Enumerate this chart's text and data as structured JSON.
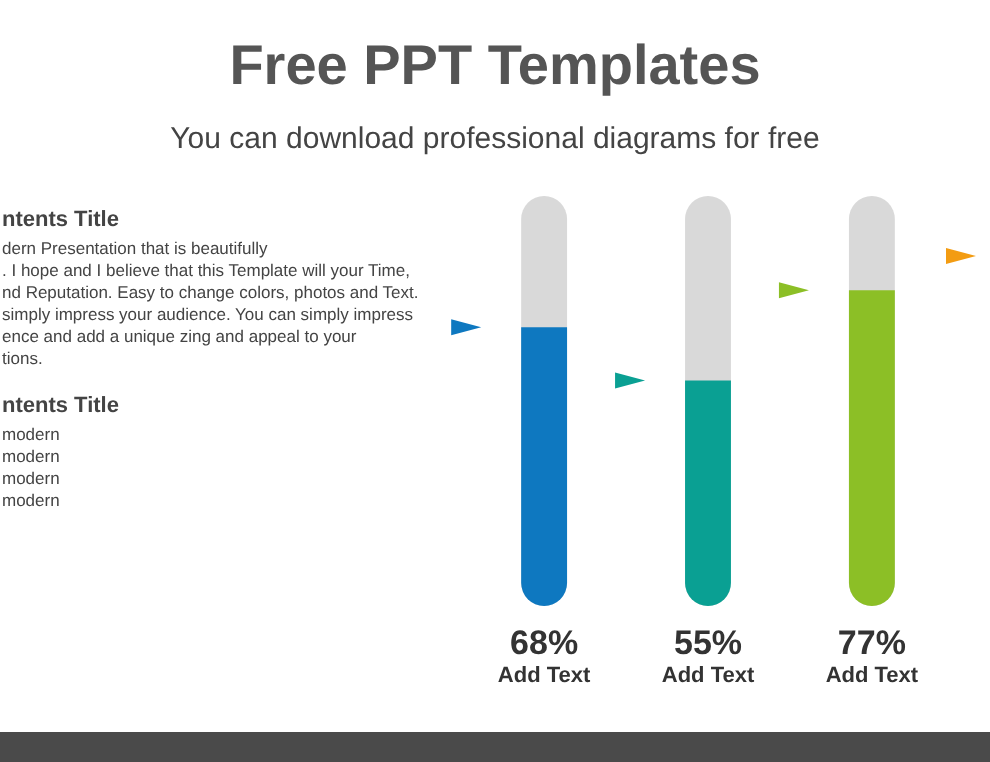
{
  "chart_data": {
    "type": "bar",
    "title": "Free PPT Templates",
    "subtitle": "You can download professional diagrams for free",
    "categories": [
      "Add Text",
      "Add Text",
      "Add Text"
    ],
    "values": [
      68,
      55,
      77
    ],
    "colors": [
      "#0e78c0",
      "#0aa093",
      "#8cbf26"
    ],
    "value_labels": [
      "68%",
      "55%",
      "77%"
    ],
    "ylim": [
      0,
      100
    ],
    "tick_labels": false,
    "annotations": [
      "ntents Title",
      "dern Presentation that is beautifully",
      ". I hope and I believe that this Template will your Time,",
      "nd Reputation. Easy to change colors, photos and Text.",
      "simply impress your audience. You can simply impress",
      "ence and add a unique zing and appeal to your",
      "tions.",
      "ntents Title",
      "modern",
      "modern",
      "modern",
      "modern"
    ]
  }
}
